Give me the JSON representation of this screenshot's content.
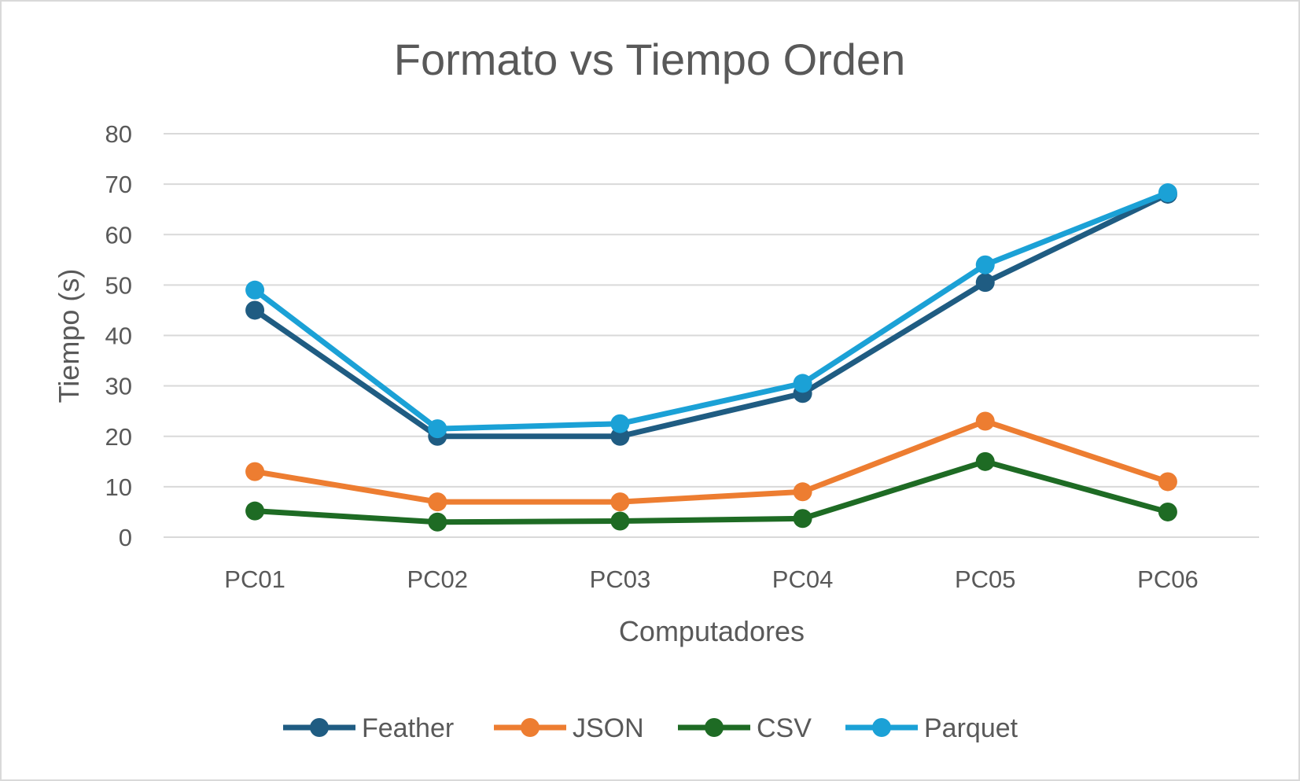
{
  "chart_data": {
    "type": "line",
    "title": "Formato vs Tiempo Orden",
    "xlabel": "Computadores",
    "ylabel": "Tiempo (s)",
    "categories": [
      "PC01",
      "PC02",
      "PC03",
      "PC04",
      "PC05",
      "PC06"
    ],
    "ylim": [
      0,
      80
    ],
    "yticks": [
      0,
      10,
      20,
      30,
      40,
      50,
      60,
      70,
      80
    ],
    "grid": true,
    "legend_position": "bottom",
    "series": [
      {
        "name": "Feather",
        "color": "#1f5c82",
        "values": [
          45,
          20,
          20,
          28.5,
          50.5,
          68
        ]
      },
      {
        "name": "JSON",
        "color": "#ed7d31",
        "values": [
          13,
          7,
          7,
          9,
          23,
          11
        ]
      },
      {
        "name": "CSV",
        "color": "#1e6b24",
        "values": [
          5.2,
          3,
          3.2,
          3.7,
          15,
          5
        ]
      },
      {
        "name": "Parquet",
        "color": "#1ba1d6",
        "values": [
          49,
          21.5,
          22.5,
          30.5,
          54,
          68.3
        ]
      }
    ]
  }
}
